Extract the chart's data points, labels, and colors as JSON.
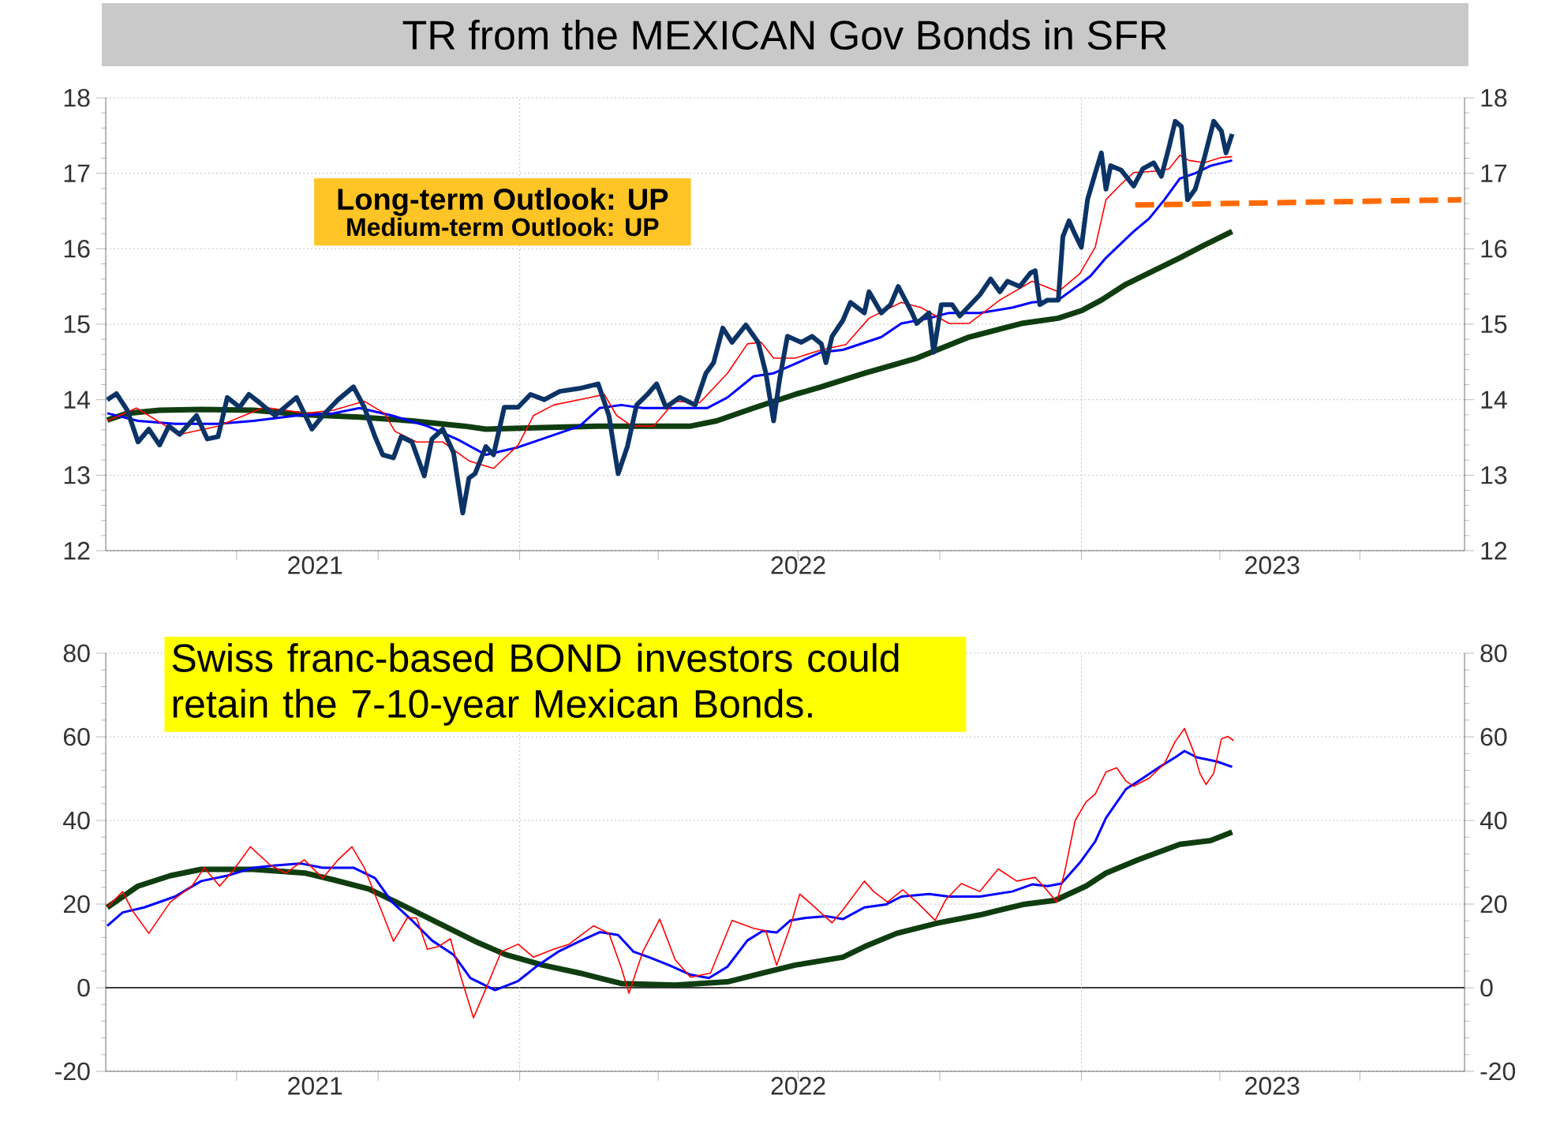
{
  "chart_data": [
    {
      "type": "line",
      "title": "TR from the MEXICAN Gov Bonds in SFR",
      "annotations": [
        "Long-term Outlook: UP",
        "Medium-term Outlook: UP"
      ],
      "xlim": [
        "2021-04-07",
        "2023-09-07"
      ],
      "xticks": [
        {
          "value": "2021-07-01",
          "label": null
        },
        {
          "value": "2021-10-01",
          "label": null
        },
        {
          "value": "2022-01-01",
          "label": null
        },
        {
          "value": "2022-04-01",
          "label": null
        },
        {
          "value": "2022-07-01",
          "label": null
        },
        {
          "value": "2022-10-01",
          "label": null
        },
        {
          "value": "2023-01-01",
          "label": null
        },
        {
          "value": "2023-04-01",
          "label": null
        },
        {
          "value": "2023-07-01",
          "label": null
        },
        {
          "value": "2021-08-21",
          "label": "2021"
        },
        {
          "value": "2022-07-01",
          "label": "2022"
        },
        {
          "value": "2023-05-05",
          "label": "2023"
        }
      ],
      "ylim": [
        12,
        18
      ],
      "yticks": [
        12,
        13,
        14,
        15,
        16,
        17,
        18
      ],
      "y2lim": [
        12,
        18
      ],
      "y2ticks": [
        12,
        13,
        14,
        15,
        16,
        17,
        18
      ],
      "grid": "y",
      "ref_lines": [
        {
          "axis": "x",
          "value": "2022-01-01",
          "color": "#b4b4b4",
          "line_style": "dotted"
        },
        {
          "axis": "x",
          "value": "2023-01-01",
          "color": "#b4b4b4",
          "line_style": "dotted"
        }
      ],
      "series": [
        {
          "color": "#0f3d10",
          "x": [
            "2021-04-08",
            "2021-04-21",
            "2021-05-12",
            "2021-06-08",
            "2021-07-12",
            "2021-08-15",
            "2021-09-19",
            "2021-10-23",
            "2021-11-26",
            "2021-12-10",
            "2022-01-16",
            "2022-02-20",
            "2022-03-25",
            "2022-04-22",
            "2022-05-09",
            "2022-06-02",
            "2022-06-29",
            "2022-07-16",
            "2022-08-13",
            "2022-09-16",
            "2022-10-20",
            "2022-11-23",
            "2022-12-17",
            "2023-01-01",
            "2023-01-14",
            "2023-01-30",
            "2023-02-17",
            "2023-03-06",
            "2023-03-22",
            "2023-04-09"
          ],
          "values": [
            13.73,
            13.82,
            13.86,
            13.87,
            13.86,
            13.8,
            13.77,
            13.72,
            13.65,
            13.61,
            13.63,
            13.65,
            13.65,
            13.65,
            13.72,
            13.89,
            14.07,
            14.17,
            14.35,
            14.55,
            14.83,
            15.01,
            15.08,
            15.18,
            15.32,
            15.53,
            15.71,
            15.88,
            16.05,
            16.23
          ]
        },
        {
          "color": "#0000ff",
          "x": [
            "2021-04-08",
            "2021-04-28",
            "2021-05-22",
            "2021-06-19",
            "2021-07-12",
            "2021-08-09",
            "2021-09-02",
            "2021-09-19",
            "2021-10-10",
            "2021-11-02",
            "2021-11-22",
            "2021-12-10",
            "2021-12-31",
            "2022-01-20",
            "2022-02-09",
            "2022-02-22",
            "2022-03-08",
            "2022-03-22",
            "2022-04-12",
            "2022-05-03",
            "2022-05-16",
            "2022-06-02",
            "2022-06-15",
            "2022-07-16",
            "2022-07-30",
            "2022-08-24",
            "2022-09-06",
            "2022-09-24",
            "2022-10-07",
            "2022-10-27",
            "2022-11-17",
            "2022-11-30",
            "2022-12-17",
            "2022-12-31",
            "2023-01-07",
            "2023-01-17",
            "2023-02-04",
            "2023-02-14",
            "2023-02-24",
            "2023-03-06",
            "2023-03-16",
            "2023-03-26",
            "2023-04-09"
          ],
          "values": [
            13.82,
            13.72,
            13.68,
            13.68,
            13.72,
            13.79,
            13.82,
            13.89,
            13.79,
            13.65,
            13.47,
            13.27,
            13.37,
            13.51,
            13.65,
            13.89,
            13.93,
            13.89,
            13.89,
            13.89,
            14.03,
            14.31,
            14.35,
            14.63,
            14.66,
            14.83,
            15.01,
            15.08,
            15.15,
            15.15,
            15.22,
            15.29,
            15.32,
            15.53,
            15.64,
            15.88,
            16.23,
            16.4,
            16.65,
            16.93,
            17.0,
            17.1,
            17.17
          ]
        },
        {
          "color": "#ff0000",
          "x": [
            "2021-04-08",
            "2021-04-27",
            "2021-05-25",
            "2021-06-19",
            "2021-07-19",
            "2021-08-15",
            "2021-09-02",
            "2021-09-22",
            "2021-10-05",
            "2021-10-12",
            "2021-10-26",
            "2021-11-12",
            "2021-11-29",
            "2021-12-15",
            "2021-12-31",
            "2022-01-10",
            "2022-01-23",
            "2022-02-16",
            "2022-02-25",
            "2022-03-05",
            "2022-03-15",
            "2022-03-29",
            "2022-04-12",
            "2022-04-28",
            "2022-05-16",
            "2022-05-29",
            "2022-06-07",
            "2022-06-15",
            "2022-06-29",
            "2022-07-16",
            "2022-08-01",
            "2022-08-16",
            "2022-09-06",
            "2022-09-19",
            "2022-10-07",
            "2022-10-20",
            "2022-11-09",
            "2022-11-30",
            "2022-12-17",
            "2022-12-31",
            "2023-01-10",
            "2023-01-17",
            "2023-01-27",
            "2023-02-04",
            "2023-02-20",
            "2023-02-27",
            "2023-03-06",
            "2023-03-12",
            "2023-03-22",
            "2023-04-02",
            "2023-04-09"
          ],
          "values": [
            13.72,
            13.89,
            13.54,
            13.65,
            13.9,
            13.82,
            13.86,
            13.98,
            13.82,
            13.58,
            13.44,
            13.44,
            13.19,
            13.09,
            13.4,
            13.79,
            13.93,
            14.03,
            14.07,
            13.79,
            13.65,
            13.65,
            13.98,
            13.96,
            14.35,
            14.74,
            14.76,
            14.55,
            14.55,
            14.66,
            14.73,
            15.08,
            15.29,
            15.22,
            15.01,
            15.01,
            15.32,
            15.57,
            15.43,
            15.67,
            16.02,
            16.65,
            16.86,
            17.01,
            17.03,
            17.06,
            17.24,
            17.17,
            17.14,
            17.21,
            17.22
          ]
        },
        {
          "color": "#0b3366",
          "x": [
            "2021-04-08",
            "2021-04-14",
            "2021-04-21",
            "2021-04-28",
            "2021-05-05",
            "2021-05-12",
            "2021-05-18",
            "2021-05-25",
            "2021-06-05",
            "2021-06-12",
            "2021-06-19",
            "2021-06-25",
            "2021-07-03",
            "2021-07-09",
            "2021-07-16",
            "2021-07-26",
            "2021-08-09",
            "2021-08-19",
            "2021-08-26",
            "2021-09-05",
            "2021-09-15",
            "2021-09-22",
            "2021-09-29",
            "2021-10-04",
            "2021-10-11",
            "2021-10-16",
            "2021-10-23",
            "2021-10-31",
            "2021-11-05",
            "2021-11-12",
            "2021-11-19",
            "2021-11-25",
            "2021-11-29",
            "2021-12-03",
            "2021-12-10",
            "2021-12-15",
            "2021-12-22",
            "2021-12-31",
            "2022-01-08",
            "2022-01-17",
            "2022-01-27",
            "2022-02-09",
            "2022-02-21",
            "2022-02-28",
            "2022-03-06",
            "2022-03-12",
            "2022-03-18",
            "2022-03-25",
            "2022-03-31",
            "2022-04-06",
            "2022-04-15",
            "2022-04-25",
            "2022-05-02",
            "2022-05-07",
            "2022-05-13",
            "2022-05-19",
            "2022-05-28",
            "2022-06-05",
            "2022-06-10",
            "2022-06-15",
            "2022-06-19",
            "2022-06-24",
            "2022-07-03",
            "2022-07-10",
            "2022-07-16",
            "2022-07-19",
            "2022-07-23",
            "2022-07-30",
            "2022-08-04",
            "2022-08-13",
            "2022-08-16",
            "2022-08-24",
            "2022-08-30",
            "2022-09-04",
            "2022-09-13",
            "2022-09-16",
            "2022-09-24",
            "2022-09-27",
            "2022-10-02",
            "2022-10-09",
            "2022-10-14",
            "2022-10-27",
            "2022-11-03",
            "2022-11-09",
            "2022-11-14",
            "2022-11-22",
            "2022-11-29",
            "2022-12-02",
            "2022-12-05",
            "2022-12-10",
            "2022-12-17",
            "2022-12-20",
            "2022-12-24",
            "2022-12-27",
            "2023-01-01",
            "2023-01-05",
            "2023-01-10",
            "2023-01-14",
            "2023-01-17",
            "2023-01-20",
            "2023-01-27",
            "2023-02-04",
            "2023-02-10",
            "2023-02-17",
            "2023-02-22",
            "2023-02-27",
            "2023-03-03",
            "2023-03-07",
            "2023-03-11",
            "2023-03-16",
            "2023-03-22",
            "2023-03-28",
            "2023-04-02",
            "2023-04-05",
            "2023-04-09"
          ],
          "values": [
            14.0,
            14.08,
            13.86,
            13.44,
            13.61,
            13.4,
            13.65,
            13.54,
            13.79,
            13.48,
            13.51,
            14.03,
            13.9,
            14.07,
            13.96,
            13.79,
            14.03,
            13.61,
            13.79,
            14.0,
            14.17,
            13.9,
            13.51,
            13.27,
            13.23,
            13.51,
            13.44,
            12.99,
            13.48,
            13.61,
            13.3,
            12.5,
            12.96,
            13.02,
            13.38,
            13.27,
            13.9,
            13.9,
            14.07,
            14.0,
            14.11,
            14.15,
            14.21,
            13.79,
            13.02,
            13.38,
            13.93,
            14.07,
            14.21,
            13.9,
            14.03,
            13.93,
            14.35,
            14.49,
            14.95,
            14.76,
            14.99,
            14.76,
            14.35,
            13.72,
            14.28,
            14.84,
            14.76,
            14.84,
            14.74,
            14.49,
            14.84,
            15.05,
            15.29,
            15.15,
            15.43,
            15.15,
            15.26,
            15.5,
            15.15,
            15.01,
            15.15,
            14.63,
            15.26,
            15.26,
            15.11,
            15.39,
            15.6,
            15.43,
            15.57,
            15.5,
            15.68,
            15.71,
            15.26,
            15.32,
            15.32,
            16.16,
            16.37,
            16.23,
            16.02,
            16.65,
            17.0,
            17.27,
            16.79,
            17.1,
            17.04,
            16.83,
            17.06,
            17.14,
            16.96,
            17.35,
            17.69,
            17.62,
            16.65,
            16.79,
            17.21,
            17.69,
            17.56,
            17.27,
            17.52
          ]
        },
        {
          "color": "#ff6a00",
          "line_style": "dashed",
          "x": [
            "2023-02-05",
            "2023-09-05"
          ],
          "values": [
            16.58,
            16.65
          ]
        }
      ]
    },
    {
      "type": "line",
      "annotations": [
        "Swiss franc-based BOND investors could retain the 7-10-year Mexican Bonds."
      ],
      "xlim": [
        "2021-04-07",
        "2023-09-07"
      ],
      "xticks": [
        {
          "value": "2021-07-01",
          "label": null
        },
        {
          "value": "2021-10-01",
          "label": null
        },
        {
          "value": "2022-01-01",
          "label": null
        },
        {
          "value": "2022-04-01",
          "label": null
        },
        {
          "value": "2022-07-01",
          "label": null
        },
        {
          "value": "2022-10-01",
          "label": null
        },
        {
          "value": "2023-01-01",
          "label": null
        },
        {
          "value": "2023-04-01",
          "label": null
        },
        {
          "value": "2023-07-01",
          "label": null
        },
        {
          "value": "2021-08-21",
          "label": "2021"
        },
        {
          "value": "2022-07-01",
          "label": "2022"
        },
        {
          "value": "2023-05-05",
          "label": "2023"
        }
      ],
      "ylim": [
        -20,
        80
      ],
      "yticks": [
        -20,
        0,
        20,
        40,
        60,
        80
      ],
      "y2lim": [
        -20,
        80
      ],
      "y2ticks": [
        -20,
        0,
        20,
        40,
        60,
        80
      ],
      "grid": "y",
      "ref_lines": [
        {
          "axis": "y",
          "value": 0,
          "color": "#000000",
          "line_style": "solid"
        },
        {
          "axis": "x",
          "value": "2022-01-01",
          "color": "#b4b4b4",
          "line_style": "dotted"
        },
        {
          "axis": "x",
          "value": "2023-01-01",
          "color": "#b4b4b4",
          "line_style": "dotted"
        }
      ],
      "series": [
        {
          "color": "#0f3d10",
          "x": [
            "2021-04-08",
            "2021-04-28",
            "2021-05-19",
            "2021-06-08",
            "2021-07-12",
            "2021-08-15",
            "2021-09-02",
            "2021-09-25",
            "2021-10-16",
            "2021-11-09",
            "2021-12-03",
            "2021-12-23",
            "2022-01-16",
            "2022-02-09",
            "2022-03-08",
            "2022-04-12",
            "2022-05-16",
            "2022-06-08",
            "2022-06-29",
            "2022-07-30",
            "2022-08-13",
            "2022-09-03",
            "2022-09-30",
            "2022-10-27",
            "2022-11-24",
            "2022-12-15",
            "2023-01-04",
            "2023-01-17",
            "2023-02-07",
            "2023-03-06",
            "2023-03-26",
            "2023-04-09"
          ],
          "values": [
            19.2,
            24.3,
            26.8,
            28.3,
            28.3,
            27.4,
            25.8,
            23.6,
            19.9,
            15.5,
            11.1,
            7.9,
            5.4,
            3.5,
            1.0,
            0.6,
            1.4,
            3.5,
            5.4,
            7.3,
            9.8,
            13.0,
            15.5,
            17.4,
            19.9,
            20.9,
            24.3,
            27.4,
            30.6,
            34.3,
            35.2,
            37.2
          ]
        },
        {
          "color": "#0000ff",
          "x": [
            "2021-04-08",
            "2021-04-18",
            "2021-05-02",
            "2021-05-22",
            "2021-06-08",
            "2021-06-25",
            "2021-07-12",
            "2021-07-25",
            "2021-08-12",
            "2021-08-26",
            "2021-09-15",
            "2021-09-29",
            "2021-10-10",
            "2021-10-23",
            "2021-11-05",
            "2021-11-19",
            "2021-11-30",
            "2021-12-16",
            "2021-12-31",
            "2022-01-13",
            "2022-01-26",
            "2022-02-09",
            "2022-02-22",
            "2022-03-06",
            "2022-03-16",
            "2022-03-26",
            "2022-04-08",
            "2022-04-22",
            "2022-05-04",
            "2022-05-16",
            "2022-05-29",
            "2022-06-08",
            "2022-06-17",
            "2022-06-26",
            "2022-07-06",
            "2022-07-19",
            "2022-07-30",
            "2022-08-13",
            "2022-08-27",
            "2022-09-06",
            "2022-09-24",
            "2022-10-07",
            "2022-10-27",
            "2022-11-17",
            "2022-11-30",
            "2022-12-10",
            "2022-12-19",
            "2022-12-31",
            "2023-01-10",
            "2023-01-17",
            "2023-01-30",
            "2023-02-07",
            "2023-02-20",
            "2023-03-03",
            "2023-03-09",
            "2023-03-17",
            "2023-03-30",
            "2023-04-09"
          ],
          "values": [
            14.8,
            18.0,
            19.2,
            21.8,
            25.5,
            26.8,
            28.7,
            29.2,
            29.7,
            28.7,
            28.7,
            26.2,
            20.5,
            16.1,
            11.3,
            7.9,
            2.3,
            -0.6,
            1.6,
            5.4,
            8.6,
            11.1,
            13.3,
            12.6,
            8.6,
            7.3,
            5.4,
            3.1,
            2.3,
            5.0,
            11.3,
            13.6,
            13.2,
            16.1,
            16.7,
            17.1,
            16.4,
            19.2,
            19.9,
            21.8,
            22.4,
            21.8,
            21.8,
            23.0,
            24.7,
            24.3,
            24.9,
            29.9,
            35.0,
            40.6,
            47.5,
            49.4,
            52.6,
            55.1,
            56.6,
            55.1,
            54.1,
            52.8
          ]
        },
        {
          "color": "#ff0000",
          "x": [
            "2021-04-08",
            "2021-04-18",
            "2021-04-24",
            "2021-05-05",
            "2021-05-19",
            "2021-06-02",
            "2021-06-10",
            "2021-06-20",
            "2021-06-29",
            "2021-07-10",
            "2021-07-23",
            "2021-08-02",
            "2021-08-14",
            "2021-08-26",
            "2021-09-05",
            "2021-09-14",
            "2021-09-22",
            "2021-10-03",
            "2021-10-11",
            "2021-10-20",
            "2021-10-26",
            "2021-11-02",
            "2021-11-09",
            "2021-11-17",
            "2021-11-24",
            "2021-12-02",
            "2021-12-10",
            "2021-12-20",
            "2021-12-31",
            "2022-01-10",
            "2022-01-23",
            "2022-02-02",
            "2022-02-18",
            "2022-02-28",
            "2022-03-08",
            "2022-03-13",
            "2022-03-22",
            "2022-04-02",
            "2022-04-12",
            "2022-04-22",
            "2022-05-05",
            "2022-05-19",
            "2022-06-02",
            "2022-06-10",
            "2022-06-17",
            "2022-06-26",
            "2022-07-02",
            "2022-07-08",
            "2022-07-23",
            "2022-07-30",
            "2022-08-13",
            "2022-08-19",
            "2022-08-28",
            "2022-09-07",
            "2022-09-16",
            "2022-09-28",
            "2022-10-05",
            "2022-10-15",
            "2022-10-27",
            "2022-11-08",
            "2022-11-20",
            "2022-12-02",
            "2022-12-09",
            "2022-12-16",
            "2022-12-21",
            "2022-12-28",
            "2023-01-04",
            "2023-01-10",
            "2023-01-17",
            "2023-01-24",
            "2023-01-30",
            "2023-02-04",
            "2023-02-14",
            "2023-02-24",
            "2023-03-03",
            "2023-03-09",
            "2023-03-15",
            "2023-03-19",
            "2023-03-23",
            "2023-03-28",
            "2023-04-02",
            "2023-04-06",
            "2023-04-10"
          ],
          "values": [
            19.2,
            23.0,
            18.6,
            13.0,
            20.5,
            24.3,
            28.7,
            24.3,
            28.1,
            33.7,
            29.3,
            27.4,
            30.6,
            26.2,
            30.6,
            33.7,
            28.7,
            18.6,
            11.1,
            16.7,
            16.7,
            9.2,
            9.8,
            11.7,
            2.3,
            -7.2,
            -0.3,
            8.6,
            10.4,
            7.3,
            9.2,
            10.4,
            14.8,
            13.0,
            4.8,
            -1.3,
            8.6,
            16.4,
            6.7,
            2.5,
            3.5,
            16.1,
            14.2,
            13.6,
            5.4,
            14.8,
            22.4,
            20.5,
            15.5,
            18.6,
            25.5,
            23.0,
            20.5,
            23.4,
            20.5,
            16.1,
            21.1,
            24.9,
            23.0,
            28.4,
            25.5,
            26.4,
            23.6,
            20.5,
            27.4,
            40.0,
            44.4,
            46.3,
            51.6,
            52.6,
            49.4,
            48.2,
            50.1,
            53.6,
            58.9,
            62.0,
            56.4,
            51.3,
            48.6,
            51.3,
            59.5,
            60.1,
            59.1
          ]
        }
      ]
    }
  ]
}
